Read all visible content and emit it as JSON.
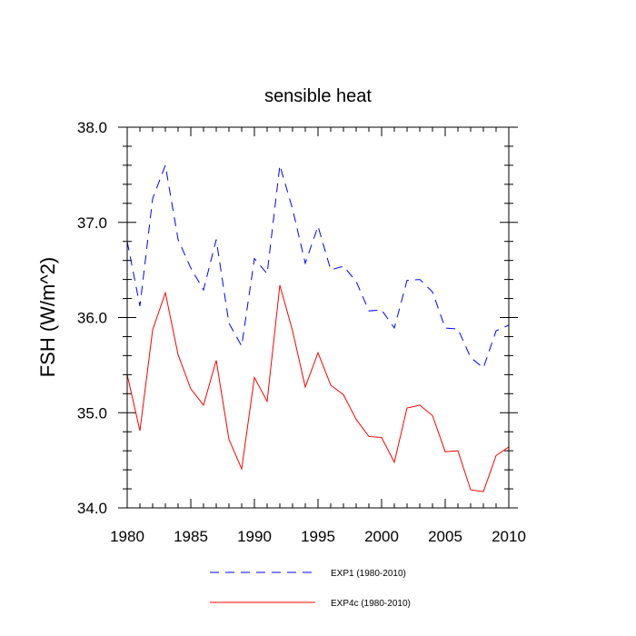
{
  "chart_data": {
    "type": "line",
    "title": "sensible heat",
    "xlabel": "",
    "ylabel": "FSH  (W/m^2)",
    "xlim": [
      1980,
      2010
    ],
    "ylim": [
      34.0,
      38.0
    ],
    "x_ticks": [
      1980,
      1985,
      1990,
      1995,
      2000,
      2005,
      2010
    ],
    "x_tick_labels": [
      "1980",
      "1985",
      "1990",
      "1995",
      "2000",
      "2005",
      "2010"
    ],
    "y_ticks": [
      34.0,
      35.0,
      36.0,
      37.0,
      38.0
    ],
    "y_tick_labels": [
      "34.0",
      "35.0",
      "36.0",
      "37.0",
      "38.0"
    ],
    "grid": false,
    "legend_position": "bottom",
    "x": [
      1980,
      1981,
      1982,
      1983,
      1984,
      1985,
      1986,
      1987,
      1988,
      1989,
      1990,
      1991,
      1992,
      1993,
      1994,
      1995,
      1996,
      1997,
      1998,
      1999,
      2000,
      2001,
      2002,
      2003,
      2004,
      2005,
      2006,
      2007,
      2008,
      2009,
      2010
    ],
    "series": [
      {
        "name": "EXP1 (1980-2010)",
        "color": "#0000ff",
        "dash": "dashed",
        "values": [
          36.8,
          36.12,
          37.25,
          37.6,
          36.82,
          36.52,
          36.29,
          36.82,
          35.94,
          35.7,
          36.62,
          36.46,
          37.6,
          37.14,
          36.57,
          36.96,
          36.5,
          36.54,
          36.38,
          36.07,
          36.08,
          35.89,
          36.39,
          36.4,
          36.27,
          35.89,
          35.88,
          35.58,
          35.47,
          35.86,
          35.92
        ]
      },
      {
        "name": "EXP4c (1980-2010)",
        "color": "#ff0000",
        "dash": "solid",
        "values": [
          35.4,
          34.81,
          35.87,
          36.26,
          35.61,
          35.25,
          35.08,
          35.55,
          34.72,
          34.41,
          35.37,
          35.12,
          36.34,
          35.86,
          35.27,
          35.63,
          35.29,
          35.19,
          34.93,
          34.75,
          34.74,
          34.48,
          35.05,
          35.08,
          34.97,
          34.59,
          34.6,
          34.19,
          34.17,
          34.55,
          34.64
        ]
      }
    ]
  }
}
